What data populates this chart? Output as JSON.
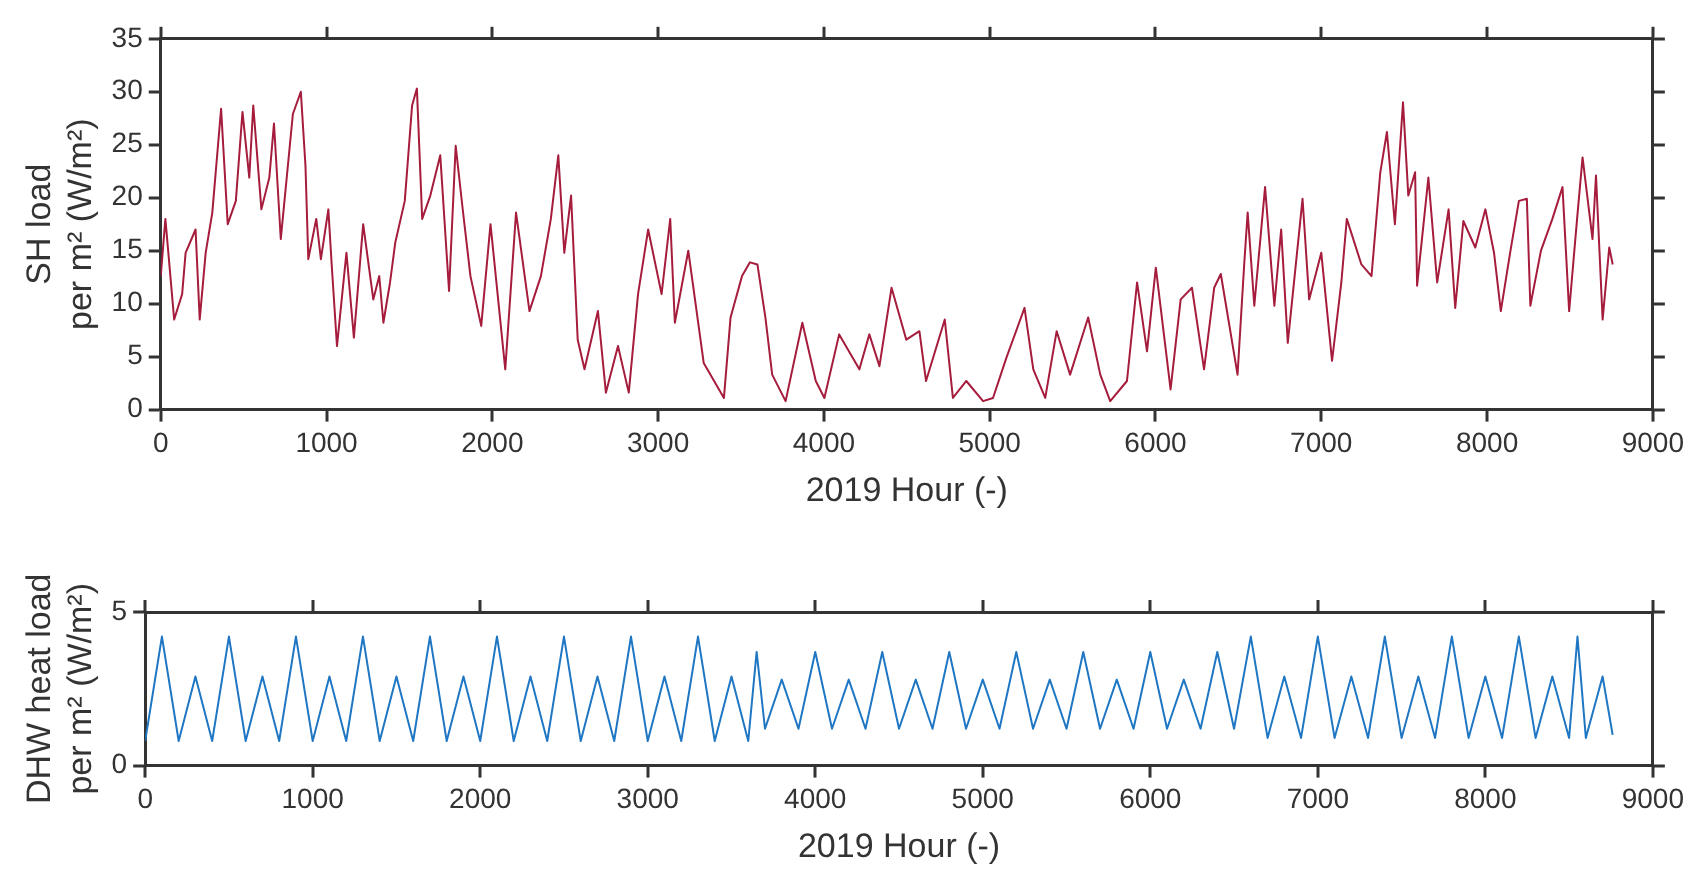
{
  "chart_data": [
    {
      "type": "line",
      "xlabel": "2019 Hour (-)",
      "ylabel": "SH load\nper m² (W/m²)",
      "xlim": [
        0,
        9000
      ],
      "xticks": [
        0,
        1000,
        2000,
        3000,
        4000,
        5000,
        6000,
        7000,
        8000,
        9000
      ],
      "ylim": [
        0,
        35
      ],
      "yticks": [
        0,
        5,
        10,
        15,
        20,
        25,
        30,
        35
      ],
      "grid": false,
      "legend": false,
      "marker": "none",
      "line_style": "solid",
      "series": [
        {
          "color": "#a51c3c",
          "x": [
            0,
            28,
            81,
            129,
            150,
            210,
            235,
            271,
            311,
            364,
            404,
            453,
            493,
            534,
            558,
            607,
            655,
            683,
            724,
            797,
            845,
            873,
            890,
            938,
            966,
            1011,
            1031,
            1063,
            1120,
            1165,
            1221,
            1282,
            1318,
            1343,
            1383,
            1415,
            1472,
            1516,
            1545,
            1577,
            1626,
            1686,
            1739,
            1779,
            1820,
            1868,
            1933,
            1989,
            2078,
            2143,
            2224,
            2293,
            2353,
            2398,
            2434,
            2475,
            2515,
            2556,
            2637,
            2685,
            2758,
            2823,
            2879,
            2940,
            3021,
            3073,
            3101,
            3182,
            3275,
            3397,
            3437,
            3506,
            3554,
            3599,
            3647,
            3688,
            3769,
            3870,
            3951,
            4003,
            4092,
            4214,
            4274,
            4335,
            4408,
            4497,
            4576,
            4616,
            4729,
            4778,
            4859,
            4960,
            5020,
            5101,
            5210,
            5263,
            5335,
            5404,
            5485,
            5594,
            5667,
            5727,
            5828,
            5889,
            5949,
            6002,
            6091,
            6152,
            6220,
            6293,
            6354,
            6394,
            6495,
            6535,
            6556,
            6596,
            6661,
            6717,
            6758,
            6798,
            6887,
            6927,
            7000,
            7065,
            7121,
            7154,
            7242,
            7303,
            7356,
            7396,
            7444,
            7493,
            7525,
            7566,
            7578,
            7646,
            7699,
            7768,
            7808,
            7857,
            7929,
            7990,
            8042,
            8083,
            8139,
            8192,
            8240,
            8261,
            8325,
            8394,
            8455,
            8495,
            8543,
            8576,
            8636,
            8657,
            8697,
            8737,
            8758
          ],
          "values": [
            12.6,
            18,
            8.5,
            10.9,
            14.8,
            17,
            8.5,
            14.8,
            18.6,
            28.4,
            17.5,
            19.7,
            28.1,
            21.9,
            28.7,
            18.9,
            21.9,
            27,
            16.1,
            27.9,
            30,
            23,
            14.2,
            18,
            14.2,
            18.9,
            13.7,
            6,
            14.8,
            6.8,
            17.5,
            10.4,
            12.6,
            8.2,
            12,
            15.8,
            19.7,
            28.7,
            30.3,
            18,
            20.2,
            24,
            11.2,
            24.9,
            19.1,
            12.6,
            7.9,
            17.5,
            3.8,
            18.6,
            9.3,
            12.6,
            18,
            24,
            14.8,
            20.2,
            6.6,
            3.8,
            9.3,
            1.6,
            6,
            1.6,
            10.9,
            17,
            10.9,
            18,
            8.2,
            15,
            4.4,
            1.1,
            8.7,
            12.6,
            13.9,
            13.7,
            8.7,
            3.3,
            0.8,
            8.2,
            2.7,
            1.1,
            7.1,
            3.8,
            7.1,
            4.1,
            11.5,
            6.6,
            7.4,
            2.7,
            8.5,
            1.1,
            2.7,
            0.8,
            1.1,
            4.9,
            9.6,
            3.8,
            1.1,
            7.4,
            3.3,
            8.7,
            3.3,
            0.8,
            2.7,
            12,
            5.5,
            13.4,
            1.9,
            10.4,
            11.5,
            3.8,
            11.5,
            12.8,
            3.3,
            13.7,
            18.6,
            9.8,
            21,
            9.8,
            17,
            6.3,
            19.9,
            10.4,
            14.8,
            4.6,
            12,
            18,
            13.7,
            12.6,
            22.4,
            26.2,
            17.5,
            29,
            20.2,
            22.4,
            11.7,
            21.9,
            12,
            18.9,
            9.6,
            17.8,
            15.3,
            18.9,
            14.8,
            9.3,
            14.8,
            19.7,
            19.9,
            9.8,
            15,
            18,
            21,
            9.3,
            18,
            23.8,
            16.1,
            22.1,
            8.5,
            15.3,
            13.7
          ]
        }
      ]
    },
    {
      "type": "line",
      "xlabel": "2019 Hour (-)",
      "ylabel": "DHW heat load\nper m² (W/m²)",
      "xlim": [
        0,
        9000
      ],
      "xticks": [
        0,
        1000,
        2000,
        3000,
        4000,
        5000,
        6000,
        7000,
        8000,
        9000
      ],
      "ylim": [
        0,
        5
      ],
      "yticks": [
        0,
        5
      ],
      "grid": false,
      "legend": false,
      "marker": "none",
      "line_style": "solid",
      "series": [
        {
          "color": "#1f77c4",
          "x": [
            0,
            100,
            200,
            300,
            400,
            500,
            600,
            700,
            800,
            900,
            1000,
            1100,
            1200,
            1300,
            1400,
            1500,
            1600,
            1700,
            1800,
            1900,
            2000,
            2100,
            2200,
            2300,
            2400,
            2500,
            2600,
            2700,
            2800,
            2900,
            3000,
            3100,
            3200,
            3300,
            3400,
            3500,
            3600,
            3650,
            3700,
            3800,
            3900,
            4000,
            4100,
            4200,
            4300,
            4400,
            4500,
            4600,
            4700,
            4800,
            4900,
            5000,
            5100,
            5200,
            5300,
            5400,
            5500,
            5600,
            5700,
            5800,
            5900,
            6000,
            6100,
            6200,
            6300,
            6400,
            6500,
            6600,
            6700,
            6800,
            6900,
            7000,
            7100,
            7200,
            7300,
            7400,
            7500,
            7600,
            7700,
            7800,
            7900,
            8000,
            8100,
            8200,
            8300,
            8400,
            8500,
            8550,
            8600,
            8700,
            8760
          ],
          "values": [
            0.8,
            4.2,
            0.8,
            2.9,
            0.8,
            4.2,
            0.8,
            2.9,
            0.8,
            4.2,
            0.8,
            2.9,
            0.8,
            4.2,
            0.8,
            2.9,
            0.8,
            4.2,
            0.8,
            2.9,
            0.8,
            4.2,
            0.8,
            2.9,
            0.8,
            4.2,
            0.8,
            2.9,
            0.8,
            4.2,
            0.8,
            2.9,
            0.8,
            4.2,
            0.8,
            2.9,
            0.8,
            3.7,
            1.2,
            2.8,
            1.2,
            3.7,
            1.2,
            2.8,
            1.2,
            3.7,
            1.2,
            2.8,
            1.2,
            3.7,
            1.2,
            2.8,
            1.2,
            3.7,
            1.2,
            2.8,
            1.2,
            3.7,
            1.2,
            2.8,
            1.2,
            3.7,
            1.2,
            2.8,
            1.2,
            3.7,
            1.2,
            4.2,
            0.9,
            2.9,
            0.9,
            4.2,
            0.9,
            2.9,
            0.9,
            4.2,
            0.9,
            2.9,
            0.9,
            4.2,
            0.9,
            2.9,
            0.9,
            4.2,
            0.9,
            2.9,
            0.9,
            4.2,
            0.9,
            2.9,
            1
          ]
        }
      ]
    }
  ]
}
